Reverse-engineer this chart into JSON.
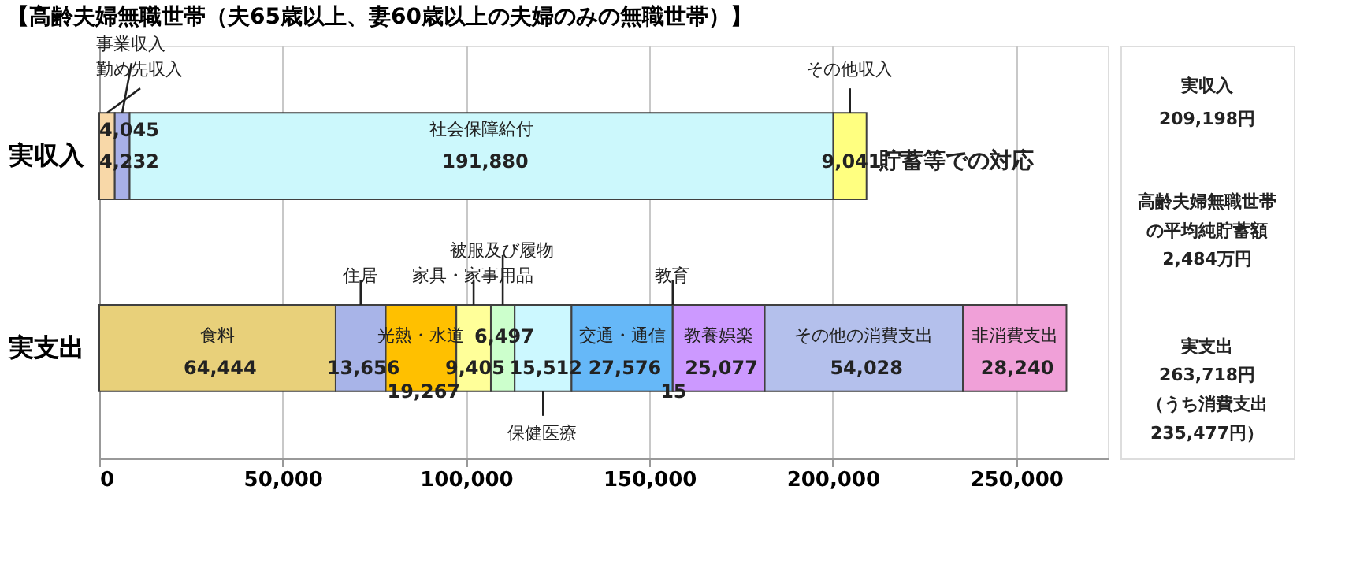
{
  "chart_data": {
    "type": "bar",
    "orientation": "horizontal",
    "stacked": true,
    "title": "【高齢夫婦無職世帯（夫65歳以上、妻60歳以上の夫婦のみの無職世帯）】",
    "categories": [
      "実収入",
      "実支出"
    ],
    "series": [
      {
        "name": "勤め先収入",
        "color": "#f8d8a8",
        "values": [
          4232,
          null
        ],
        "value_labels": [
          "4,232",
          null
        ]
      },
      {
        "name": "事業収入",
        "color": "#a8b0e8",
        "values": [
          4045,
          null
        ],
        "value_labels": [
          "4,045",
          null
        ]
      },
      {
        "name": "社会保障給付",
        "color": "#ccf8fc",
        "values": [
          191880,
          null
        ],
        "value_labels": [
          "191,880",
          null
        ]
      },
      {
        "name": "その他収入",
        "color": "#ffff80",
        "values": [
          9041,
          null
        ],
        "value_labels": [
          "9,041",
          null
        ]
      },
      {
        "name": "食料",
        "color": "#e8d07a",
        "values": [
          null,
          64444
        ],
        "value_labels": [
          null,
          "64,444"
        ]
      },
      {
        "name": "住居",
        "color": "#a8b4e8",
        "values": [
          null,
          13656
        ],
        "value_labels": [
          null,
          "13,656"
        ]
      },
      {
        "name": "光熱・水道",
        "color": "#ffc000",
        "values": [
          null,
          19267
        ],
        "value_labels": [
          null,
          "19,267"
        ]
      },
      {
        "name": "家具・家事用品",
        "color": "#ffff99",
        "values": [
          null,
          9405
        ],
        "value_labels": [
          null,
          "9,405"
        ]
      },
      {
        "name": "被服及び履物",
        "color": "#ccffcc",
        "values": [
          null,
          6497
        ],
        "value_labels": [
          null,
          "6,497"
        ]
      },
      {
        "name": "保健医療",
        "color": "#ccf8ff",
        "values": [
          null,
          15512
        ],
        "value_labels": [
          null,
          "15,512"
        ]
      },
      {
        "name": "交通・通信",
        "color": "#66b8f8",
        "values": [
          null,
          27576
        ],
        "value_labels": [
          null,
          "27,576"
        ]
      },
      {
        "name": "教育",
        "color": "#4a90d0",
        "values": [
          null,
          15
        ],
        "value_labels": [
          null,
          "15"
        ]
      },
      {
        "name": "教養娯楽",
        "color": "#cc99ff",
        "values": [
          null,
          25077
        ],
        "value_labels": [
          null,
          "25,077"
        ]
      },
      {
        "name": "その他の消費支出",
        "color": "#b4c0ec",
        "values": [
          null,
          54028
        ],
        "value_labels": [
          null,
          "54,028"
        ]
      },
      {
        "name": "非消費支出",
        "color": "#f0a0d8",
        "values": [
          null,
          28240
        ],
        "value_labels": [
          null,
          "28,240"
        ]
      }
    ],
    "xlim": [
      0,
      275000
    ],
    "xticks": [
      0,
      {
        "value": 50000,
        "label": "50,000"
      },
      {
        "value": 100000,
        "label": "100,000"
      },
      {
        "value": 150000,
        "label": "150,000"
      },
      {
        "value": 200000,
        "label": "200,000"
      },
      {
        "value": 250000,
        "label": "250,000"
      }
    ],
    "grid": "x",
    "annotations": [
      "貯蓄等での対応",
      "実収入",
      "209,198円",
      "高齢夫婦無職世帯",
      "の平均純貯蓄額",
      "2,484万円",
      "実支出",
      "263,718円",
      "（うち消費支出",
      "235,477円）"
    ]
  }
}
